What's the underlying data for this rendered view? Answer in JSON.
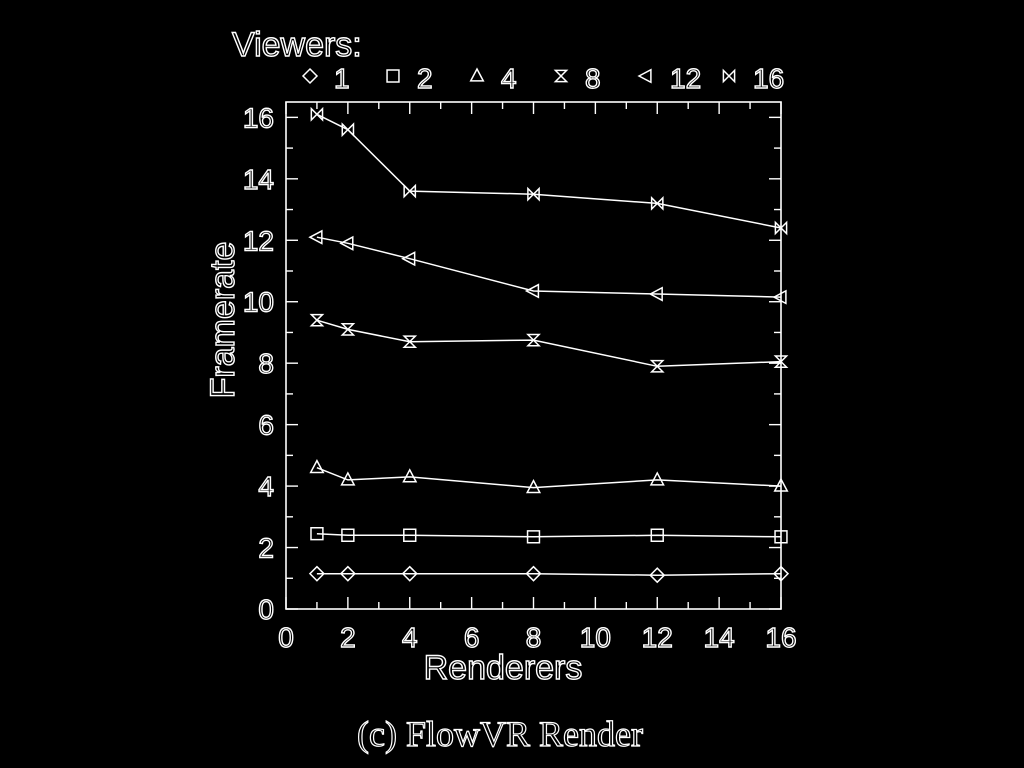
{
  "chart_data": {
    "type": "line",
    "title": "",
    "caption": "(c)  FlowVR Render",
    "xlabel": "Renderers",
    "ylabel": "Framerate",
    "xlim": [
      0,
      16
    ],
    "ylim": [
      0,
      16.5
    ],
    "x_ticks": [
      0,
      2,
      4,
      6,
      8,
      10,
      12,
      14,
      16
    ],
    "y_ticks": [
      0,
      2,
      4,
      6,
      8,
      10,
      12,
      14,
      16
    ],
    "grid": false,
    "legend_title": "Viewers:",
    "legend_position": "top",
    "x": [
      1,
      2,
      4,
      8,
      12,
      16
    ],
    "series": [
      {
        "name": "1",
        "marker": "diamond",
        "values": [
          1.15,
          1.15,
          1.15,
          1.15,
          1.1,
          1.15
        ]
      },
      {
        "name": "2",
        "marker": "square",
        "values": [
          2.45,
          2.4,
          2.4,
          2.35,
          2.4,
          2.35
        ]
      },
      {
        "name": "4",
        "marker": "triangle-up",
        "values": [
          4.6,
          4.2,
          4.3,
          3.95,
          4.2,
          4.0
        ]
      },
      {
        "name": "8",
        "marker": "hourglass",
        "values": [
          9.4,
          9.1,
          8.7,
          8.75,
          7.9,
          8.05
        ]
      },
      {
        "name": "12",
        "marker": "triangle-left",
        "values": [
          12.1,
          11.9,
          11.4,
          10.35,
          10.25,
          10.15
        ]
      },
      {
        "name": "16",
        "marker": "bowtie",
        "values": [
          16.1,
          15.6,
          13.6,
          13.5,
          13.2,
          12.4
        ]
      }
    ]
  }
}
